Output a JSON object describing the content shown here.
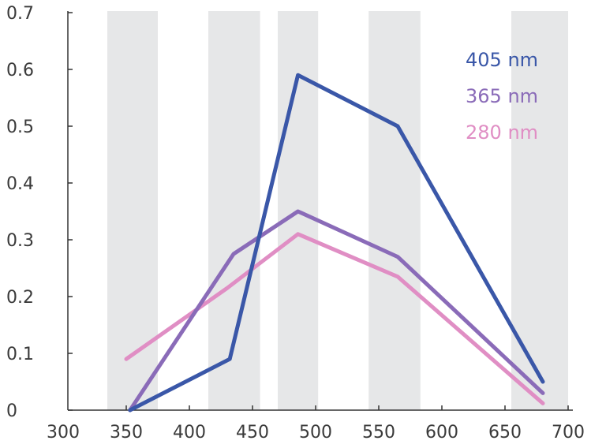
{
  "chart_data": {
    "type": "line",
    "title": "",
    "xlabel": "",
    "ylabel": "",
    "xlim": [
      300,
      700
    ],
    "ylim": [
      0,
      0.7
    ],
    "x_ticks": [
      "300",
      "350",
      "400",
      "450",
      "500",
      "550",
      "600",
      "650",
      "700"
    ],
    "y_ticks": [
      "0",
      "0.1",
      "0.2",
      "0.3",
      "0.4",
      "0.5",
      "0.6",
      "0.7"
    ],
    "shaded_bands": [
      [
        335,
        375
      ],
      [
        415,
        456
      ],
      [
        470,
        502
      ],
      [
        542,
        583
      ],
      [
        655,
        700
      ]
    ],
    "band_color": "#e6e7e8",
    "legend_position": "top-right",
    "series": [
      {
        "name": "405 nm",
        "color": "#3a57a8",
        "points": [
          [
            353,
            0.0
          ],
          [
            432,
            0.09
          ],
          [
            486,
            0.59
          ],
          [
            565,
            0.5
          ],
          [
            680,
            0.05
          ]
        ]
      },
      {
        "name": "365 nm",
        "color": "#8a6bb8",
        "points": [
          [
            353,
            0.0
          ],
          [
            435,
            0.275
          ],
          [
            486,
            0.35
          ],
          [
            565,
            0.27
          ],
          [
            680,
            0.03
          ]
        ]
      },
      {
        "name": "280 nm",
        "color": "#e08ec4",
        "points": [
          [
            350,
            0.09
          ],
          [
            430,
            0.215
          ],
          [
            486,
            0.31
          ],
          [
            565,
            0.235
          ],
          [
            680,
            0.012
          ]
        ]
      }
    ]
  }
}
